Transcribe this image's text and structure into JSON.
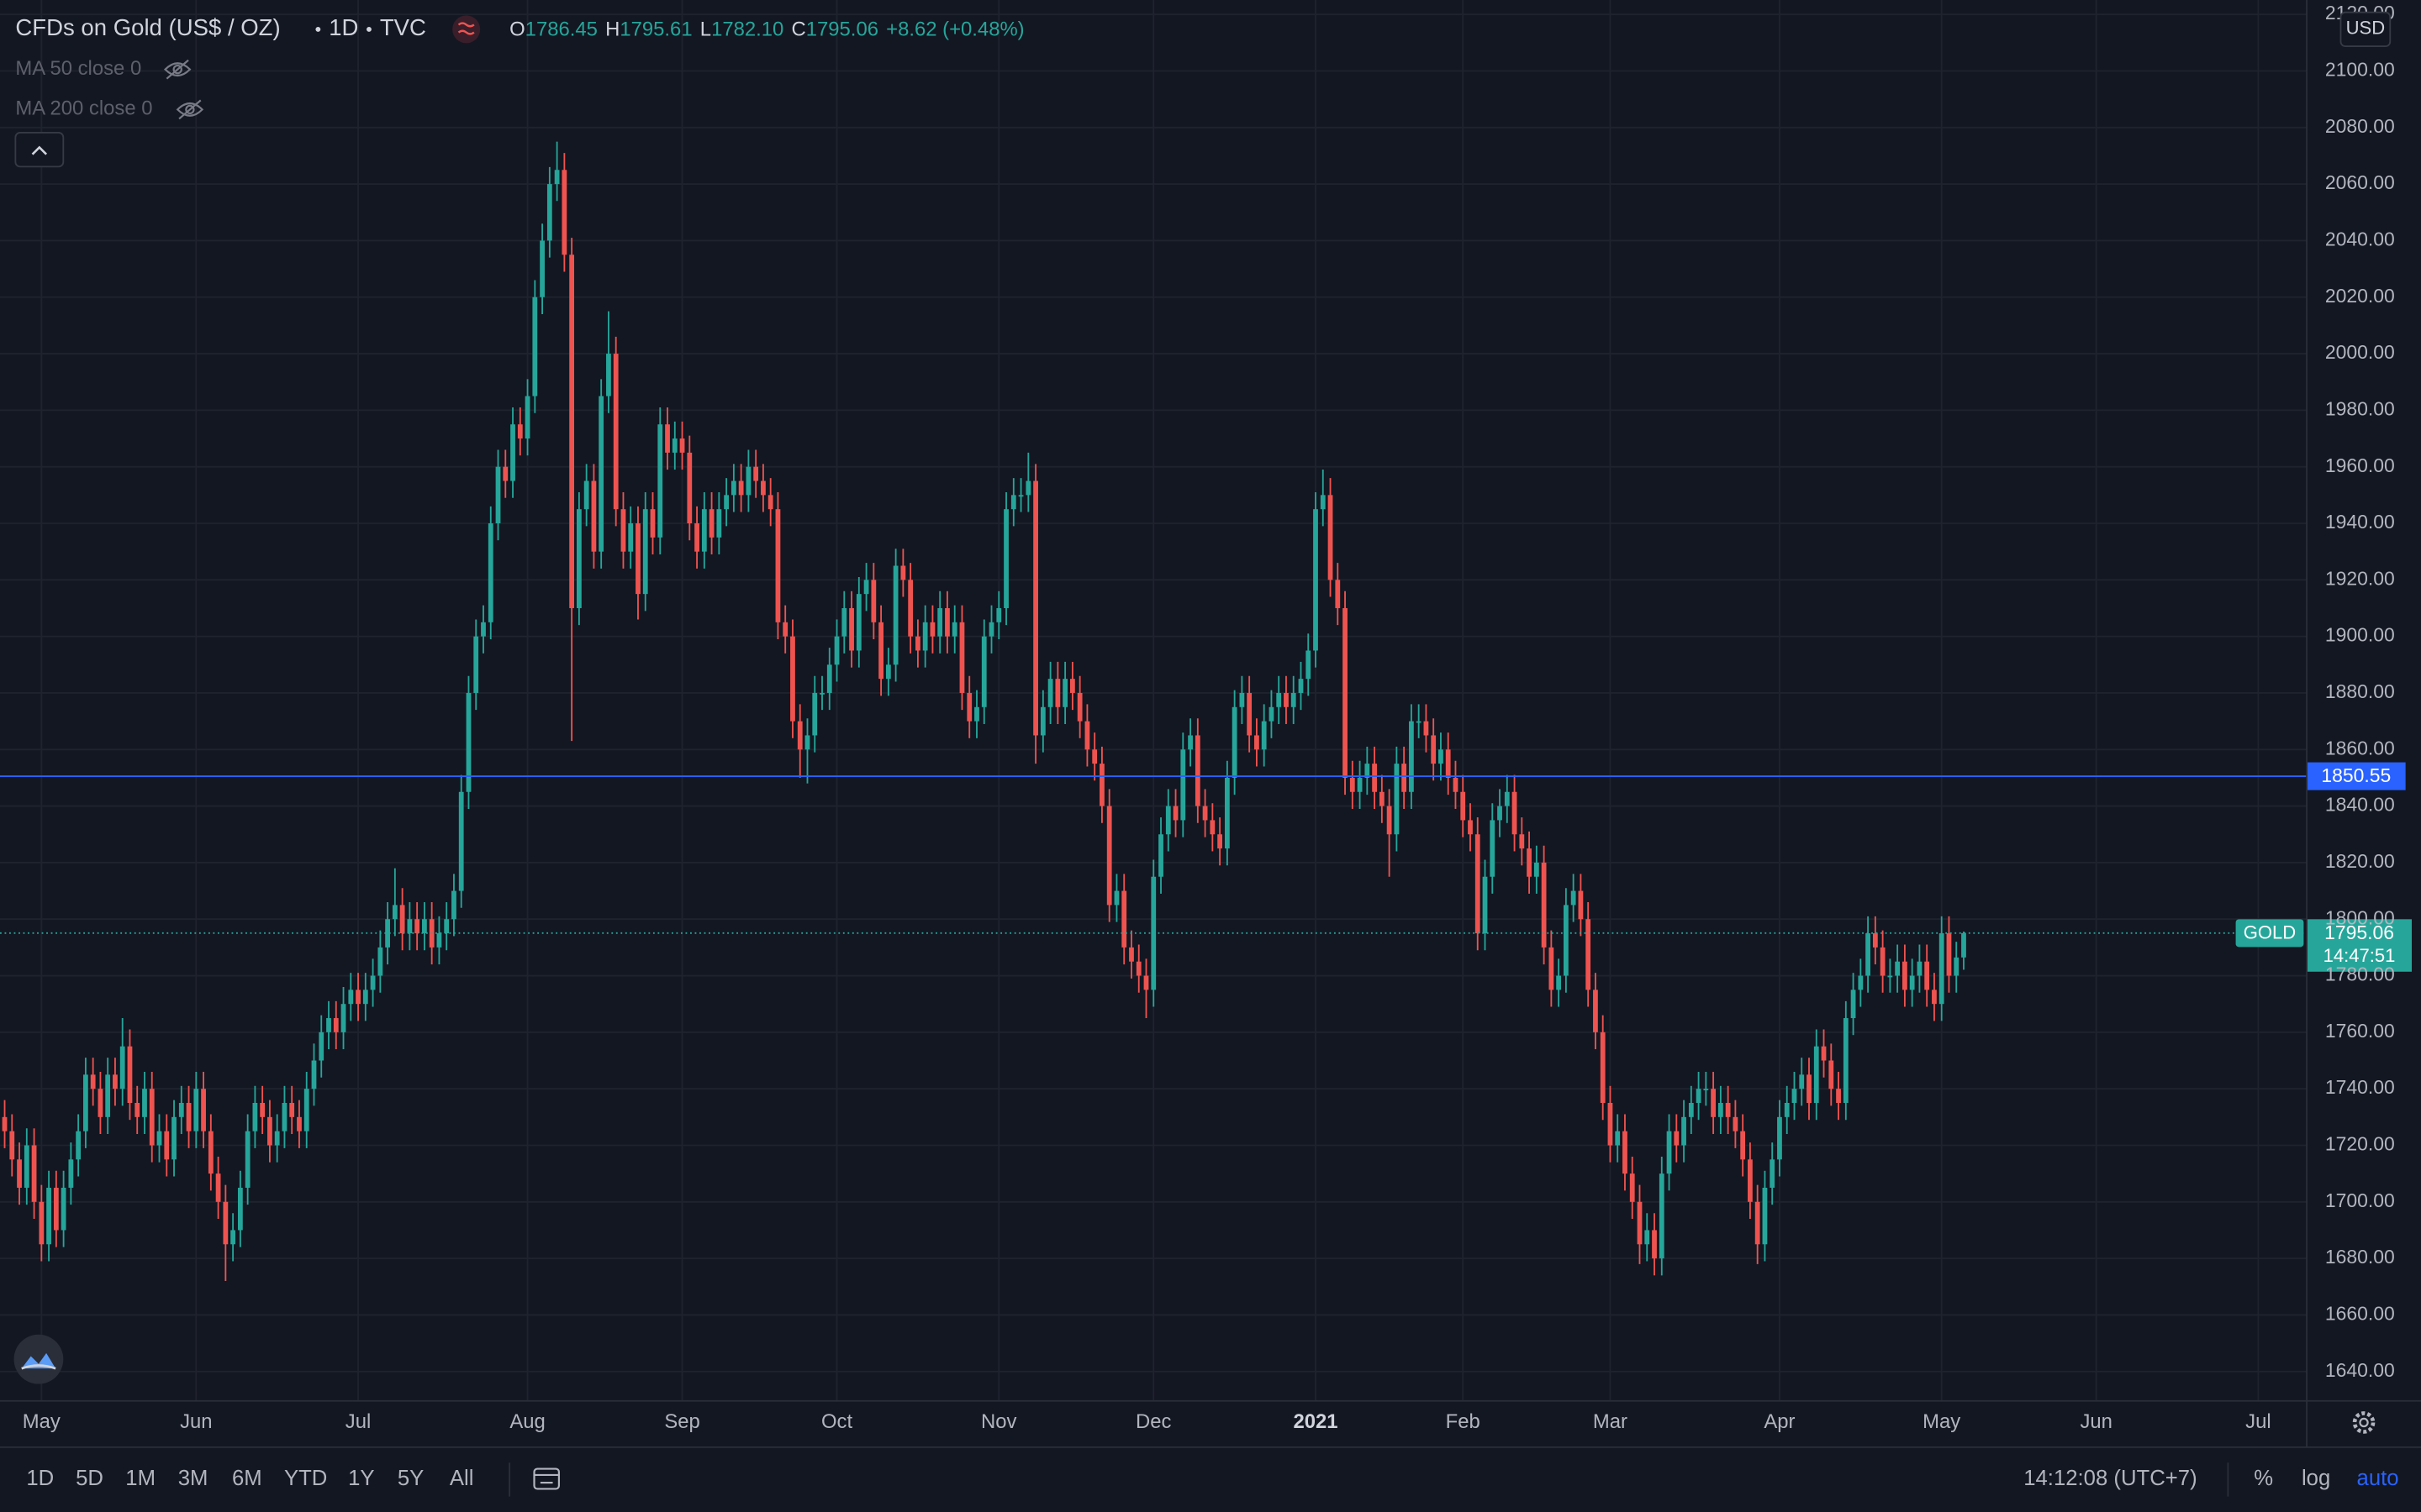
{
  "chart_data": {
    "type": "candlestick",
    "symbol": "CFDs on Gold (US$ / OZ)",
    "interval": "1D",
    "source": "TVC",
    "ohlc_header": [
      {
        "key": "O",
        "value": 1786.45
      },
      {
        "key": "H",
        "value": 1795.61
      },
      {
        "key": "L",
        "value": 1782.1,
        "label": "1782.10"
      },
      {
        "key": "C",
        "value": 1795.06
      }
    ],
    "change": "+8.62 (+0.48%)",
    "indicators": [
      "MA 50 close 0",
      "MA 200 close 0"
    ],
    "currency": "USD",
    "price_label": "GOLD",
    "countdown": "14:47:51",
    "alert_line": 1850.55,
    "alert_color": "#2962ff",
    "colors": {
      "up": "#26a69a",
      "down": "#ef5350"
    },
    "grid": true,
    "open": [
      1730,
      1725,
      1715,
      1705,
      1720,
      1700,
      1685,
      1705,
      1690,
      1705,
      1715,
      1725,
      1745,
      1740,
      1730,
      1745,
      1740,
      1755,
      1735,
      1730,
      1740,
      1720,
      1725,
      1715,
      1730,
      1735,
      1725,
      1740,
      1725,
      1710,
      1700,
      1685,
      1690,
      1705,
      1725,
      1735,
      1730,
      1720,
      1725,
      1735,
      1730,
      1725,
      1740,
      1750,
      1760,
      1765,
      1760,
      1770,
      1775,
      1770,
      1775,
      1780,
      1790,
      1800,
      1805,
      1795,
      1800,
      1795,
      1800,
      1790,
      1795,
      1800,
      1810,
      1845,
      1880,
      1900,
      1905,
      1940,
      1960,
      1955,
      1975,
      1970,
      1985,
      2020,
      2040,
      2060,
      2065,
      2035,
      1910,
      1945,
      1955,
      1930,
      1985,
      2000,
      1945,
      1930,
      1940,
      1915,
      1945,
      1935,
      1975,
      1965,
      1970,
      1965,
      1940,
      1930,
      1945,
      1935,
      1945,
      1950,
      1955,
      1950,
      1960,
      1955,
      1950,
      1945,
      1905,
      1900,
      1870,
      1860,
      1865,
      1880,
      1880,
      1890,
      1900,
      1910,
      1895,
      1915,
      1920,
      1905,
      1885,
      1890,
      1925,
      1920,
      1900,
      1895,
      1905,
      1900,
      1910,
      1900,
      1905,
      1880,
      1870,
      1875,
      1900,
      1905,
      1910,
      1945,
      1950,
      1950,
      1955,
      1865,
      1875,
      1885,
      1875,
      1885,
      1880,
      1870,
      1860,
      1855,
      1840,
      1805,
      1810,
      1790,
      1785,
      1780,
      1775,
      1815,
      1830,
      1840,
      1835,
      1860,
      1865,
      1840,
      1835,
      1830,
      1825,
      1850,
      1875,
      1880,
      1865,
      1860,
      1870,
      1875,
      1880,
      1875,
      1880,
      1885,
      1895,
      1945,
      1950,
      1920,
      1910,
      1850,
      1845,
      1850,
      1855,
      1845,
      1840,
      1830,
      1855,
      1845,
      1870,
      1870,
      1865,
      1855,
      1860,
      1850,
      1845,
      1835,
      1830,
      1795,
      1815,
      1835,
      1840,
      1845,
      1830,
      1825,
      1815,
      1820,
      1790,
      1775,
      1780,
      1805,
      1810,
      1800,
      1775,
      1760,
      1735,
      1720,
      1725,
      1710,
      1700,
      1685,
      1690,
      1680,
      1710,
      1725,
      1720,
      1730,
      1735,
      1740,
      1740,
      1730,
      1735,
      1730,
      1725,
      1715,
      1700,
      1685,
      1705,
      1715,
      1730,
      1735,
      1740,
      1745,
      1735,
      1755,
      1750,
      1740,
      1735,
      1765,
      1775,
      1780,
      1795,
      1790,
      1780,
      1780,
      1785,
      1775,
      1780,
      1785,
      1775,
      1770,
      1795,
      1780,
      1786.45
    ],
    "high": [
      1736,
      1731,
      1721,
      1726,
      1726,
      1706,
      1711,
      1711,
      1711,
      1721,
      1731,
      1751,
      1751,
      1746,
      1751,
      1751,
      1765,
      1761,
      1741,
      1746,
      1746,
      1731,
      1731,
      1736,
      1741,
      1741,
      1746,
      1746,
      1731,
      1716,
      1706,
      1696,
      1711,
      1731,
      1741,
      1741,
      1736,
      1731,
      1741,
      1741,
      1736,
      1746,
      1756,
      1766,
      1771,
      1771,
      1776,
      1781,
      1781,
      1781,
      1786,
      1796,
      1806,
      1818,
      1811,
      1806,
      1806,
      1806,
      1806,
      1801,
      1806,
      1816,
      1851,
      1886,
      1906,
      1911,
      1946,
      1966,
      1966,
      1981,
      1981,
      1991,
      2026,
      2046,
      2066,
      2075,
      2071,
      2041,
      1951,
      1961,
      1961,
      1991,
      2015,
      2006,
      1951,
      1946,
      1946,
      1951,
      1951,
      1981,
      1981,
      1976,
      1976,
      1971,
      1946,
      1951,
      1951,
      1951,
      1956,
      1961,
      1961,
      1966,
      1966,
      1961,
      1956,
      1951,
      1911,
      1906,
      1876,
      1871,
      1886,
      1886,
      1896,
      1906,
      1916,
      1916,
      1921,
      1926,
      1926,
      1911,
      1896,
      1931,
      1931,
      1926,
      1906,
      1911,
      1911,
      1916,
      1916,
      1911,
      1911,
      1886,
      1881,
      1906,
      1911,
      1916,
      1951,
      1956,
      1956,
      1965,
      1961,
      1881,
      1891,
      1891,
      1891,
      1891,
      1886,
      1876,
      1866,
      1861,
      1846,
      1816,
      1816,
      1796,
      1791,
      1786,
      1821,
      1836,
      1846,
      1846,
      1866,
      1871,
      1871,
      1846,
      1841,
      1836,
      1856,
      1881,
      1886,
      1886,
      1871,
      1876,
      1881,
      1886,
      1886,
      1886,
      1891,
      1901,
      1951,
      1959,
      1956,
      1926,
      1916,
      1856,
      1856,
      1861,
      1861,
      1851,
      1846,
      1861,
      1861,
      1876,
      1876,
      1876,
      1871,
      1866,
      1866,
      1856,
      1851,
      1841,
      1836,
      1821,
      1841,
      1846,
      1851,
      1851,
      1836,
      1831,
      1826,
      1826,
      1796,
      1786,
      1811,
      1816,
      1816,
      1806,
      1781,
      1766,
      1741,
      1731,
      1731,
      1716,
      1706,
      1696,
      1696,
      1716,
      1731,
      1731,
      1736,
      1741,
      1746,
      1746,
      1746,
      1741,
      1741,
      1736,
      1731,
      1721,
      1706,
      1711,
      1721,
      1736,
      1741,
      1746,
      1751,
      1751,
      1761,
      1761,
      1756,
      1746,
      1771,
      1781,
      1786,
      1801,
      1801,
      1796,
      1786,
      1791,
      1791,
      1786,
      1791,
      1791,
      1781,
      1801,
      1801,
      1792,
      1795.61
    ],
    "low": [
      1719,
      1709,
      1699,
      1699,
      1694,
      1679,
      1679,
      1684,
      1684,
      1699,
      1709,
      1719,
      1734,
      1724,
      1724,
      1734,
      1734,
      1729,
      1724,
      1724,
      1714,
      1714,
      1709,
      1709,
      1724,
      1719,
      1719,
      1719,
      1704,
      1694,
      1672,
      1679,
      1684,
      1699,
      1719,
      1724,
      1714,
      1714,
      1719,
      1724,
      1719,
      1719,
      1734,
      1744,
      1754,
      1754,
      1754,
      1764,
      1764,
      1764,
      1769,
      1774,
      1784,
      1794,
      1789,
      1789,
      1789,
      1789,
      1784,
      1784,
      1789,
      1794,
      1804,
      1839,
      1874,
      1894,
      1899,
      1934,
      1949,
      1949,
      1964,
      1964,
      1979,
      2014,
      2034,
      2054,
      2029,
      1863,
      1904,
      1939,
      1924,
      1924,
      1979,
      1939,
      1924,
      1924,
      1906,
      1909,
      1929,
      1929,
      1959,
      1959,
      1959,
      1934,
      1924,
      1924,
      1929,
      1929,
      1939,
      1944,
      1944,
      1944,
      1949,
      1944,
      1939,
      1899,
      1894,
      1864,
      1850,
      1848,
      1859,
      1874,
      1874,
      1884,
      1894,
      1889,
      1889,
      1909,
      1899,
      1879,
      1879,
      1884,
      1914,
      1894,
      1889,
      1889,
      1894,
      1894,
      1894,
      1894,
      1874,
      1864,
      1864,
      1869,
      1894,
      1899,
      1904,
      1939,
      1944,
      1944,
      1855,
      1859,
      1869,
      1869,
      1869,
      1874,
      1864,
      1854,
      1849,
      1834,
      1799,
      1799,
      1784,
      1779,
      1774,
      1765,
      1769,
      1809,
      1824,
      1829,
      1829,
      1854,
      1834,
      1829,
      1824,
      1819,
      1819,
      1844,
      1869,
      1859,
      1854,
      1854,
      1864,
      1869,
      1869,
      1869,
      1874,
      1879,
      1889,
      1939,
      1914,
      1904,
      1844,
      1839,
      1839,
      1844,
      1839,
      1834,
      1815,
      1824,
      1839,
      1839,
      1864,
      1859,
      1849,
      1849,
      1844,
      1839,
      1829,
      1824,
      1789,
      1789,
      1809,
      1829,
      1834,
      1824,
      1819,
      1809,
      1809,
      1784,
      1769,
      1769,
      1774,
      1799,
      1794,
      1769,
      1754,
      1729,
      1714,
      1714,
      1704,
      1694,
      1678,
      1679,
      1674,
      1674,
      1704,
      1714,
      1714,
      1724,
      1729,
      1734,
      1724,
      1724,
      1724,
      1719,
      1709,
      1694,
      1678,
      1679,
      1699,
      1709,
      1724,
      1729,
      1734,
      1729,
      1729,
      1744,
      1734,
      1729,
      1729,
      1759,
      1769,
      1774,
      1784,
      1774,
      1774,
      1774,
      1769,
      1769,
      1774,
      1769,
      1764,
      1764,
      1774,
      1774,
      1782.1
    ],
    "close": [
      1725,
      1715,
      1705,
      1720,
      1700,
      1685,
      1705,
      1690,
      1705,
      1715,
      1725,
      1745,
      1740,
      1730,
      1745,
      1740,
      1755,
      1735,
      1730,
      1740,
      1720,
      1725,
      1715,
      1730,
      1735,
      1725,
      1740,
      1725,
      1710,
      1700,
      1685,
      1690,
      1705,
      1725,
      1735,
      1730,
      1720,
      1725,
      1735,
      1730,
      1725,
      1740,
      1750,
      1760,
      1765,
      1760,
      1770,
      1775,
      1770,
      1775,
      1780,
      1790,
      1800,
      1805,
      1795,
      1800,
      1795,
      1800,
      1790,
      1795,
      1800,
      1810,
      1845,
      1880,
      1900,
      1905,
      1940,
      1960,
      1955,
      1975,
      1970,
      1985,
      2020,
      2040,
      2060,
      2065,
      2035,
      1910,
      1945,
      1955,
      1930,
      1985,
      2000,
      1945,
      1930,
      1940,
      1915,
      1945,
      1935,
      1975,
      1965,
      1970,
      1965,
      1940,
      1930,
      1945,
      1935,
      1945,
      1950,
      1955,
      1950,
      1960,
      1955,
      1950,
      1945,
      1905,
      1900,
      1870,
      1860,
      1865,
      1880,
      1880,
      1890,
      1900,
      1910,
      1895,
      1915,
      1920,
      1905,
      1885,
      1890,
      1925,
      1920,
      1900,
      1895,
      1905,
      1900,
      1910,
      1900,
      1905,
      1880,
      1870,
      1875,
      1900,
      1905,
      1910,
      1945,
      1950,
      1950,
      1955,
      1865,
      1875,
      1885,
      1875,
      1885,
      1880,
      1870,
      1860,
      1855,
      1840,
      1805,
      1810,
      1790,
      1785,
      1780,
      1775,
      1815,
      1830,
      1840,
      1835,
      1860,
      1865,
      1840,
      1835,
      1830,
      1825,
      1850,
      1875,
      1880,
      1865,
      1860,
      1870,
      1875,
      1880,
      1875,
      1880,
      1885,
      1895,
      1945,
      1950,
      1920,
      1910,
      1850,
      1845,
      1850,
      1855,
      1845,
      1840,
      1830,
      1855,
      1845,
      1870,
      1870,
      1865,
      1855,
      1860,
      1850,
      1845,
      1835,
      1830,
      1795,
      1815,
      1835,
      1840,
      1845,
      1830,
      1825,
      1815,
      1820,
      1790,
      1775,
      1780,
      1805,
      1810,
      1800,
      1775,
      1760,
      1735,
      1720,
      1725,
      1710,
      1700,
      1685,
      1690,
      1680,
      1710,
      1725,
      1720,
      1730,
      1735,
      1740,
      1740,
      1730,
      1735,
      1730,
      1725,
      1715,
      1700,
      1685,
      1705,
      1715,
      1730,
      1735,
      1740,
      1745,
      1735,
      1755,
      1750,
      1740,
      1735,
      1765,
      1775,
      1780,
      1795,
      1790,
      1780,
      1780,
      1785,
      1775,
      1780,
      1785,
      1775,
      1770,
      1795,
      1780,
      1786.45,
      1795.06
    ],
    "xlim": [
      -0.63,
      312.58
    ],
    "xticks": [
      {
        "value": 5,
        "label": "May"
      },
      {
        "value": 26,
        "label": "Jun"
      },
      {
        "value": 48,
        "label": "Jul"
      },
      {
        "value": 71,
        "label": "Aug"
      },
      {
        "value": 92,
        "label": "Sep"
      },
      {
        "value": 113,
        "label": "Oct"
      },
      {
        "value": 135,
        "label": "Nov"
      },
      {
        "value": 156,
        "label": "Dec"
      },
      {
        "value": 178,
        "label": "2021",
        "bold": true
      },
      {
        "value": 198,
        "label": "Feb"
      },
      {
        "value": 218,
        "label": "Mar"
      },
      {
        "value": 241,
        "label": "Apr"
      },
      {
        "value": 263,
        "label": "May"
      },
      {
        "value": 284,
        "label": "Jun"
      },
      {
        "value": 306,
        "label": "Jul"
      }
    ],
    "ylim": [
      1629.6,
      2125.1
    ],
    "yticks": [
      {
        "value": 1640,
        "label": "1640.00"
      },
      {
        "value": 1660,
        "label": "1660.00"
      },
      {
        "value": 1680,
        "label": "1680.00"
      },
      {
        "value": 1700,
        "label": "1700.00"
      },
      {
        "value": 1720,
        "label": "1720.00"
      },
      {
        "value": 1740,
        "label": "1740.00"
      },
      {
        "value": 1760,
        "label": "1760.00"
      },
      {
        "value": 1780,
        "label": "1780.00"
      },
      {
        "value": 1800,
        "label": "1800.00"
      },
      {
        "value": 1820,
        "label": "1820.00"
      },
      {
        "value": 1840,
        "label": "1840.00"
      },
      {
        "value": 1860,
        "label": "1860.00"
      },
      {
        "value": 1880,
        "label": "1880.00"
      },
      {
        "value": 1900,
        "label": "1900.00"
      },
      {
        "value": 1920,
        "label": "1920.00"
      },
      {
        "value": 1940,
        "label": "1940.00"
      },
      {
        "value": 1960,
        "label": "1960.00"
      },
      {
        "value": 1980,
        "label": "1980.00"
      },
      {
        "value": 2000,
        "label": "2000.00"
      },
      {
        "value": 2020,
        "label": "2020.00"
      },
      {
        "value": 2040,
        "label": "2040.00"
      },
      {
        "value": 2060,
        "label": "2060.00"
      },
      {
        "value": 2080,
        "label": "2080.00"
      },
      {
        "value": 2100,
        "label": "2100.00"
      },
      {
        "value": 2120,
        "label": "2120.00"
      }
    ]
  },
  "toolbar": {
    "ranges": [
      "1D",
      "5D",
      "1M",
      "3M",
      "6M",
      "YTD",
      "1Y",
      "5Y",
      "All"
    ],
    "clock": "14:12:08 (UTC+7)",
    "options": [
      "%",
      "log",
      "auto"
    ],
    "active_option": 2
  }
}
